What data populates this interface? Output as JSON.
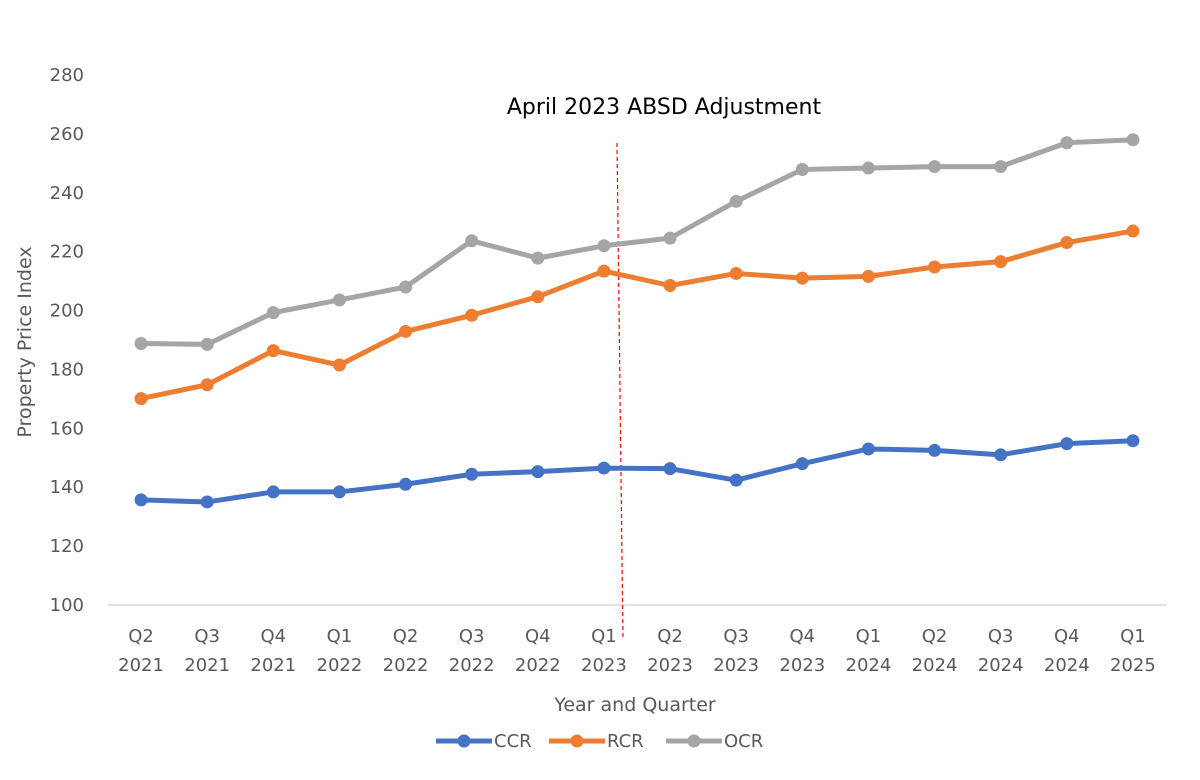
{
  "chart_data": {
    "type": "line",
    "categories": [
      [
        "Q2",
        "2021"
      ],
      [
        "Q3",
        "2021"
      ],
      [
        "Q4",
        "2021"
      ],
      [
        "Q1",
        "2022"
      ],
      [
        "Q2",
        "2022"
      ],
      [
        "Q3",
        "2022"
      ],
      [
        "Q4",
        "2022"
      ],
      [
        "Q1",
        "2023"
      ],
      [
        "Q2",
        "2023"
      ],
      [
        "Q3",
        "2023"
      ],
      [
        "Q4",
        "2023"
      ],
      [
        "Q1",
        "2024"
      ],
      [
        "Q2",
        "2024"
      ],
      [
        "Q3",
        "2024"
      ],
      [
        "Q4",
        "2024"
      ],
      [
        "Q1",
        "2025"
      ]
    ],
    "series": [
      {
        "name": "CCR",
        "color": "#4472C4",
        "values": [
          135.7,
          135.0,
          138.4,
          138.4,
          141.0,
          144.4,
          145.3,
          146.5,
          146.3,
          142.4,
          148.0,
          153.0,
          152.5,
          151.0,
          154.8,
          155.8
        ]
      },
      {
        "name": "RCR",
        "color": "#ED7D31",
        "values": [
          170.1,
          174.8,
          186.4,
          181.5,
          192.9,
          198.4,
          204.7,
          213.4,
          208.5,
          212.6,
          211.0,
          211.6,
          214.8,
          216.6,
          223.1,
          227.0
        ]
      },
      {
        "name": "OCR",
        "color": "#A5A5A5",
        "values": [
          188.8,
          188.5,
          199.3,
          203.6,
          208.0,
          223.7,
          217.8,
          222.0,
          224.6,
          237.1,
          247.9,
          248.4,
          248.9,
          248.9,
          257.0,
          258.0
        ]
      }
    ],
    "xlabel": "Year and Quarter",
    "ylabel": "Property Price Index",
    "ylim": [
      100,
      280
    ],
    "ytick_step": 20,
    "annotation": {
      "text": "April 2023 ABSD Adjustment",
      "after_category_index": 7,
      "line_color": "#FF0000"
    },
    "legend_position": "bottom",
    "gridlines": false
  }
}
